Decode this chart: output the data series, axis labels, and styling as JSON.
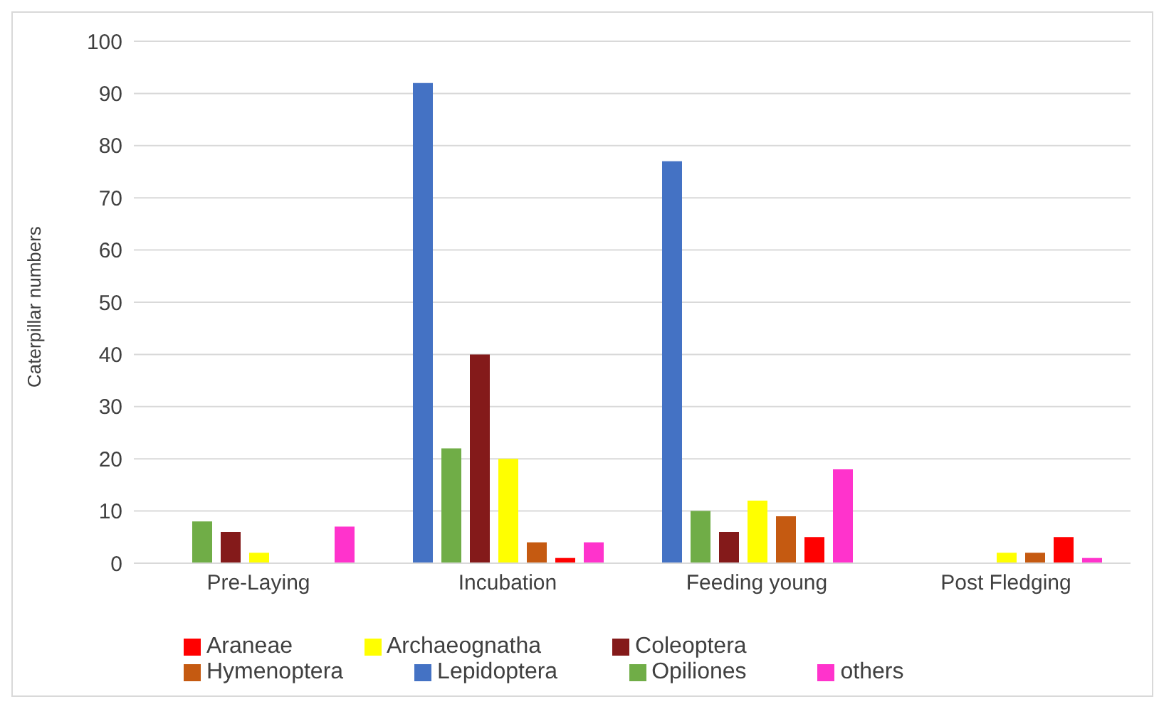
{
  "chart_data": {
    "type": "bar",
    "ylabel": "Caterpillar numbers",
    "categories": [
      "Pre-Laying",
      "Incubation",
      "Feeding young",
      "Post Fledging"
    ],
    "series": [
      {
        "name": "Lepidoptera",
        "color": "#4472c4",
        "values": [
          0,
          92,
          77,
          0
        ]
      },
      {
        "name": "Opiliones",
        "color": "#70ad47",
        "values": [
          8,
          22,
          10,
          0
        ]
      },
      {
        "name": "Coleoptera",
        "color": "#841a1a",
        "values": [
          6,
          40,
          6,
          0
        ]
      },
      {
        "name": "Archaeognatha",
        "color": "#ffff00",
        "values": [
          2,
          20,
          12,
          2
        ]
      },
      {
        "name": "Hymenoptera",
        "color": "#c55a11",
        "values": [
          0,
          4,
          9,
          2
        ]
      },
      {
        "name": "Araneae",
        "color": "#ff0000",
        "values": [
          0,
          1,
          5,
          5
        ]
      },
      {
        "name": "others",
        "color": "#ff33cc",
        "values": [
          7,
          4,
          18,
          1
        ]
      }
    ],
    "ylim": [
      0,
      100
    ],
    "yticks": [
      0,
      10,
      20,
      30,
      40,
      50,
      60,
      70,
      80,
      90,
      100
    ],
    "grid": "y",
    "legend": "bottom"
  }
}
